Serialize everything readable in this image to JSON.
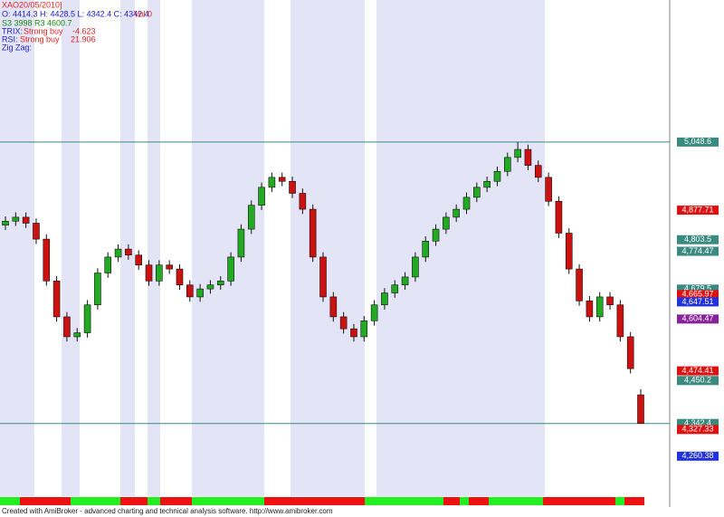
{
  "chart_data": {
    "type": "candlestick",
    "header": {
      "symbol": "XAO20/05/2010]",
      "ohlc": "O: 4414.3  H: 4428.5  L: 4342.4  C: 4342.4",
      "volume": "Vol:0",
      "levels": "S3 3998 R3 4600.7",
      "trix_label": "TRIX:",
      "trix_signal": "Strong buy",
      "trix_value": "-4.623",
      "rsi_label": "RSI:",
      "rsi_signal": "Strong buy",
      "rsi_value": "21.906",
      "zigzag": "Zig Zag:"
    },
    "footer": "Created with AmiBroker - advanced charting and technical analysis software. http://www.amibroker.com",
    "up_color": "#22aa22",
    "down_color": "#cc1111",
    "ylim": [
      4160,
      5405
    ],
    "open": [
      4840,
      4850,
      4860,
      4845,
      4805,
      4700,
      4610,
      4560,
      4570,
      4640,
      4720,
      4760,
      4780,
      4765,
      4740,
      4700,
      4740,
      4730,
      4690,
      4660,
      4680,
      4690,
      4700,
      4760,
      4830,
      4890,
      4935,
      4960,
      4950,
      4920,
      4880,
      4760,
      4660,
      4610,
      4580,
      4560,
      4600,
      4640,
      4670,
      4690,
      4710,
      4760,
      4800,
      4830,
      4860,
      4880,
      4910,
      4935,
      4950,
      4975,
      5010,
      5030,
      4990,
      4960,
      4900,
      4820,
      4730,
      4650,
      4610,
      4660,
      4640,
      4560,
      4414.3
    ],
    "high": [
      4862,
      4872,
      4872,
      4857,
      4817,
      4712,
      4622,
      4582,
      4652,
      4732,
      4772,
      4792,
      4792,
      4777,
      4752,
      4752,
      4752,
      4742,
      4702,
      4692,
      4702,
      4712,
      4772,
      4842,
      4902,
      4947,
      4972,
      4972,
      4962,
      4932,
      4892,
      4772,
      4672,
      4622,
      4592,
      4612,
      4652,
      4682,
      4702,
      4722,
      4772,
      4812,
      4842,
      4872,
      4892,
      4922,
      4947,
      4962,
      4987,
      5022,
      5048.6,
      5042,
      5002,
      4972,
      4912,
      4832,
      4742,
      4662,
      4672,
      4672,
      4652,
      4572,
      4428.5
    ],
    "low": [
      4828,
      4838,
      4833,
      4793,
      4688,
      4598,
      4548,
      4548,
      4558,
      4628,
      4708,
      4748,
      4753,
      4728,
      4688,
      4688,
      4718,
      4678,
      4648,
      4648,
      4668,
      4678,
      4688,
      4748,
      4818,
      4878,
      4923,
      4938,
      4908,
      4868,
      4748,
      4648,
      4598,
      4568,
      4548,
      4548,
      4588,
      4628,
      4658,
      4678,
      4698,
      4748,
      4788,
      4818,
      4848,
      4868,
      4898,
      4923,
      4938,
      4963,
      4998,
      4978,
      4948,
      4888,
      4808,
      4718,
      4638,
      4598,
      4598,
      4628,
      4548,
      4468,
      4342.4
    ],
    "close": [
      4850,
      4860,
      4845,
      4805,
      4700,
      4610,
      4560,
      4570,
      4640,
      4720,
      4760,
      4780,
      4765,
      4740,
      4700,
      4740,
      4730,
      4690,
      4660,
      4680,
      4690,
      4700,
      4760,
      4830,
      4890,
      4935,
      4960,
      4950,
      4920,
      4880,
      4760,
      4660,
      4610,
      4580,
      4560,
      4600,
      4640,
      4670,
      4690,
      4710,
      4760,
      4800,
      4830,
      4860,
      4880,
      4910,
      4935,
      4950,
      4975,
      5010,
      5030,
      4990,
      4960,
      4900,
      4820,
      4730,
      4650,
      4610,
      4660,
      4640,
      4560,
      4480,
      4342.4
    ],
    "price_markers": [
      {
        "value": 5048.6,
        "label": "5,048.6",
        "color": "#3a8a80",
        "line": true
      },
      {
        "value": 4877.71,
        "label": "4,877.71",
        "color": "#dd1111"
      },
      {
        "value": 4803.5,
        "label": "4,803.5",
        "color": "#3a8a80"
      },
      {
        "value": 4774.47,
        "label": "4,774.47",
        "color": "#3a8a80"
      },
      {
        "value": 4679.5,
        "label": "4,679.5",
        "color": "#3a8a80"
      },
      {
        "value": 4665.97,
        "label": "4,665.97",
        "color": "#dd1111"
      },
      {
        "value": 4647.51,
        "label": "4,647.51",
        "color": "#2233dd"
      },
      {
        "value": 4604.47,
        "label": "4,604.47",
        "color": "#882299"
      },
      {
        "value": 4474.41,
        "label": "4,474.41",
        "color": "#dd1111"
      },
      {
        "value": 4450.2,
        "label": "4,450.2",
        "color": "#3a8a80"
      },
      {
        "value": 4342.4,
        "label": "4,342.4",
        "color": "#3a8a80",
        "line": true
      },
      {
        "value": 4327.33,
        "label": "4,327.33",
        "color": "#dd1111"
      },
      {
        "value": 4260.38,
        "label": "4,260.38",
        "color": "#2233dd"
      }
    ]
  }
}
